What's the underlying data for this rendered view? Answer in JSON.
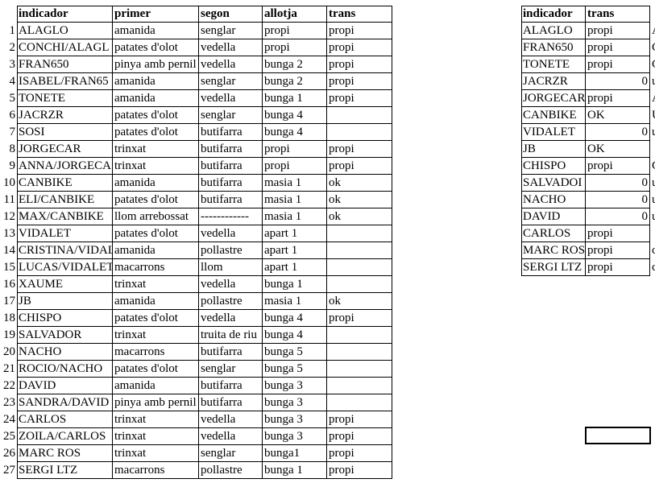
{
  "left_table": {
    "columns": [
      "indicador",
      "primer",
      "segon",
      "allotja",
      "trans"
    ],
    "rows": [
      [
        1,
        "ALAGLO",
        "amanida",
        "senglar",
        "propi",
        "propi"
      ],
      [
        2,
        "CONCHI/ALAGL",
        "patates d'olot",
        "vedella",
        "propi",
        "propi"
      ],
      [
        3,
        "FRAN650",
        "pinya amb pernil",
        "vedella",
        "bunga 2",
        "propi"
      ],
      [
        4,
        "ISABEL/FRAN65",
        "amanida",
        "senglar",
        "bunga 2",
        "propi"
      ],
      [
        5,
        "TONETE",
        "amanida",
        "vedella",
        "bunga 1",
        "propi"
      ],
      [
        6,
        "JACRZR",
        "patates d'olot",
        "senglar",
        "bunga 4",
        null
      ],
      [
        7,
        "SOSI",
        "patates d'olot",
        "butifarra",
        "bunga 4",
        null
      ],
      [
        8,
        "JORGECAR",
        "trinxat",
        "butifarra",
        "propi",
        "propi"
      ],
      [
        9,
        "ANNA/JORGECA",
        "trinxat",
        "butifarra",
        "propi",
        "propi"
      ],
      [
        10,
        "CANBIKE",
        "amanida",
        "butifarra",
        "masia 1",
        "ok"
      ],
      [
        11,
        "ELI/CANBIKE",
        "patates d'olot",
        "butifarra",
        "masia 1",
        "ok"
      ],
      [
        12,
        "MAX/CANBIKE",
        "llom arrebossat",
        "------------",
        "masia 1",
        "ok"
      ],
      [
        13,
        "VIDALET",
        "patates d'olot",
        "vedella",
        "apart 1",
        null
      ],
      [
        14,
        "CRISTINA/VIDAL",
        "amanida",
        "pollastre",
        "apart 1",
        null
      ],
      [
        15,
        "LUCAS/VIDALET",
        "macarrons",
        "llom",
        "apart 1",
        null
      ],
      [
        16,
        "XAUME",
        "trinxat",
        "vedella",
        "bunga 1",
        null
      ],
      [
        17,
        "JB",
        "amanida",
        "pollastre",
        "masia 1",
        "ok"
      ],
      [
        18,
        "CHISPO",
        "patates d'olot",
        "vedella",
        "bunga 4",
        "propi"
      ],
      [
        19,
        "SALVADOR",
        "trinxat",
        "truita de riu",
        "bunga 4",
        null
      ],
      [
        20,
        "NACHO",
        "macarrons",
        "butifarra",
        "bunga 5",
        null
      ],
      [
        21,
        "ROCIO/NACHO",
        "patates d'olot",
        "senglar",
        "bunga 5",
        null
      ],
      [
        22,
        "DAVID",
        "amanida",
        "butifarra",
        "bunga 3",
        null
      ],
      [
        23,
        "SANDRA/DAVID",
        "pinya amb pernil",
        "butifarra",
        "bunga 3",
        null
      ],
      [
        24,
        "CARLOS",
        "trinxat",
        "vedella",
        "bunga 3",
        "propi"
      ],
      [
        25,
        "ZOILA/CARLOS",
        "trinxat",
        "vedella",
        "bunga 3",
        "propi"
      ],
      [
        26,
        "MARC ROS",
        "trinxat",
        "senglar",
        "bunga1",
        "propi"
      ],
      [
        27,
        "SERGI LTZ",
        "macarrons",
        "pollastre",
        "bunga 1",
        "propi"
      ]
    ]
  },
  "right_table": {
    "columns": [
      "indicador",
      "trans"
    ],
    "rows": [
      [
        "ALAGLO",
        "propi",
        "A"
      ],
      [
        "FRAN650",
        "propi",
        "C"
      ],
      [
        "TONETE",
        "propi",
        "C"
      ],
      [
        "JACRZR",
        0,
        "u"
      ],
      [
        "JORGECAR",
        "propi",
        "A"
      ],
      [
        "CANBIKE",
        "OK",
        "U"
      ],
      [
        "VIDALET",
        0,
        "u"
      ],
      [
        "JB",
        "OK",
        null
      ],
      [
        "CHISPO",
        "propi",
        "C"
      ],
      [
        "SALVADOI",
        0,
        "u"
      ],
      [
        "NACHO",
        0,
        "u"
      ],
      [
        "DAVID",
        0,
        "u"
      ],
      [
        "CARLOS",
        "propi",
        null
      ],
      [
        "MARC ROS",
        "propi",
        "c"
      ],
      [
        "SERGI LTZ",
        "propi",
        "c"
      ]
    ]
  }
}
